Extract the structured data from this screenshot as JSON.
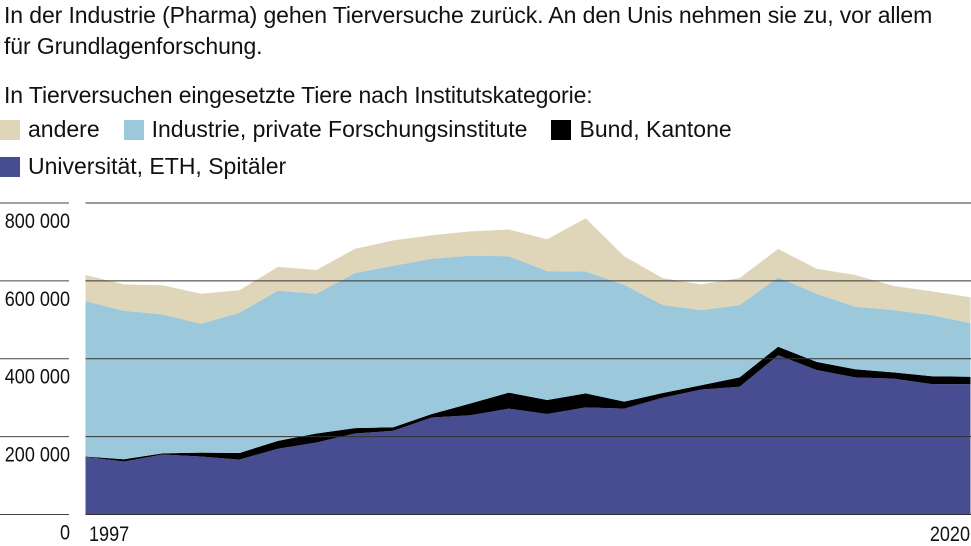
{
  "title": "In der Industrie (Pharma) gehen Tierversuche zurück. An den Unis nehmen sie zu, vor allem für Grundlagenforschung.",
  "chart_data": {
    "type": "area",
    "stacked": true,
    "title": "In Tierversuchen eingesetzte Tiere nach Institutskategorie:",
    "x": [
      1997,
      1998,
      1999,
      2000,
      2001,
      2002,
      2003,
      2004,
      2005,
      2006,
      2007,
      2008,
      2009,
      2010,
      2011,
      2012,
      2013,
      2014,
      2015,
      2016,
      2017,
      2018,
      2019,
      2020
    ],
    "x_tick_labels": [
      "1997",
      "2020"
    ],
    "y_ticks": [
      0,
      200000,
      400000,
      600000,
      800000
    ],
    "y_tick_labels": [
      "0",
      "200 000",
      "400 000",
      "600 000",
      "800 000"
    ],
    "ylim": [
      0,
      800000
    ],
    "grid": true,
    "legend_placement": "top",
    "series": [
      {
        "name": "Universität, ETH, Spitäler",
        "color": "#484c91",
        "values": [
          148000,
          136000,
          154000,
          149000,
          141000,
          169000,
          185000,
          208000,
          215000,
          249000,
          255000,
          272000,
          258000,
          275000,
          272000,
          300000,
          321000,
          328000,
          409000,
          371000,
          352000,
          349000,
          335000,
          335000
        ]
      },
      {
        "name": "Bund, Kantone",
        "color": "#000000",
        "values": [
          1000,
          6000,
          3000,
          10000,
          17000,
          20000,
          23000,
          14000,
          9000,
          9000,
          30000,
          41000,
          36000,
          36000,
          18000,
          12000,
          11000,
          24000,
          22000,
          21000,
          21000,
          16000,
          20000,
          19000
        ]
      },
      {
        "name": "Industrie, private Forschungsinstitute",
        "color": "#9bc8db",
        "values": [
          399000,
          381000,
          357000,
          331000,
          360000,
          386000,
          359000,
          398000,
          415000,
          399000,
          380000,
          350000,
          331000,
          313000,
          300000,
          226000,
          193000,
          186000,
          178000,
          175000,
          161000,
          160000,
          157000,
          137000
        ]
      },
      {
        "name": "andere",
        "color": "#dfd5b8",
        "values": [
          67000,
          68000,
          75000,
          77000,
          58000,
          61000,
          61000,
          62000,
          65000,
          60000,
          62000,
          69000,
          82000,
          137000,
          73000,
          69000,
          66000,
          69000,
          73000,
          64000,
          81000,
          62000,
          61000,
          67000
        ]
      }
    ]
  }
}
